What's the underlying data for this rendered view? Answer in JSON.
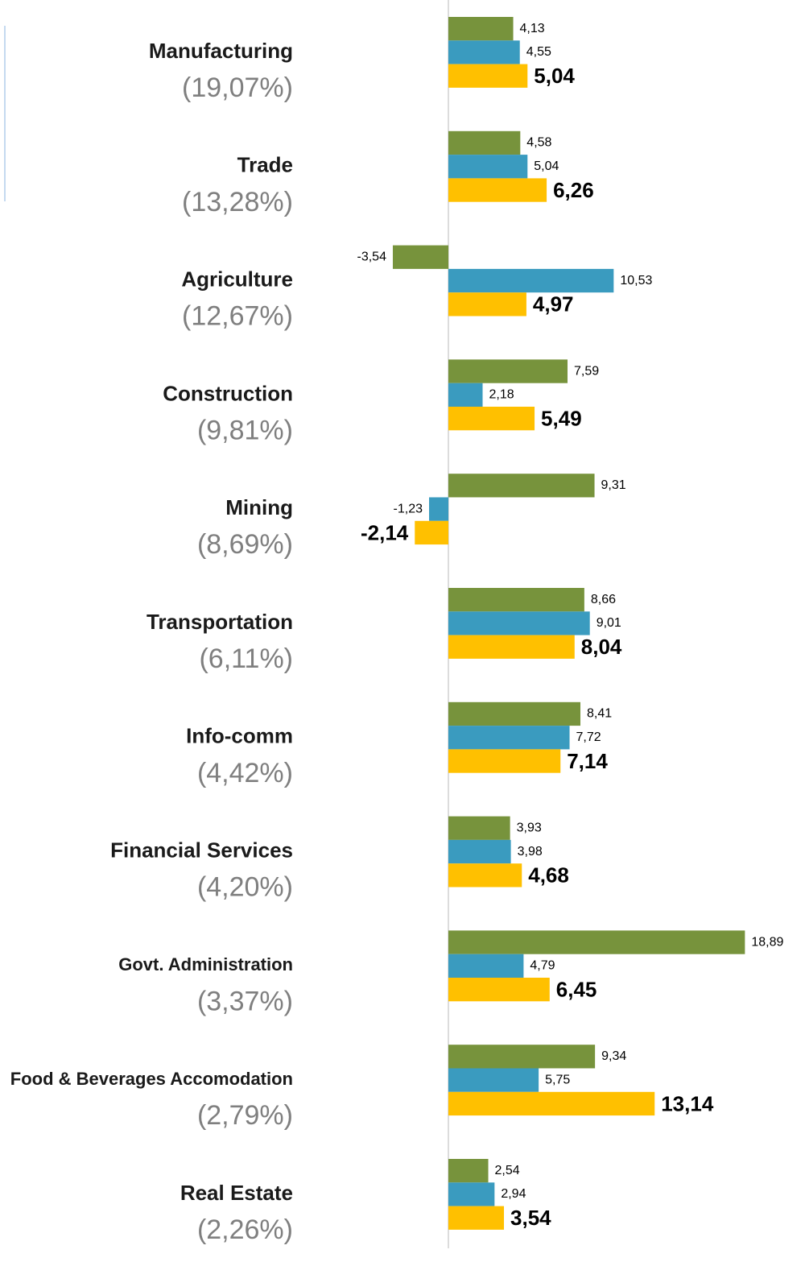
{
  "chart_data": {
    "type": "bar",
    "orientation": "horizontal",
    "categories": [
      "Manufacturing",
      "Trade",
      "Agriculture",
      "Construction",
      "Mining",
      "Transportation",
      "Info-comm",
      "Financial Services",
      "Govt. Administration",
      "Food & Beverages Accomodation",
      "Real Estate"
    ],
    "category_shares": [
      "(19,07%)",
      "(13,28%)",
      "(12,67%)",
      "(9,81%)",
      "(8,69%)",
      "(6,11%)",
      "(4,42%)",
      "(4,20%)",
      "(3,37%)",
      "(2,79%)",
      "(2,26%)"
    ],
    "xlim": [
      -10,
      22
    ],
    "series": [
      {
        "color": "#77933c",
        "values": [
          4.13,
          4.58,
          -3.54,
          7.59,
          9.31,
          8.66,
          8.41,
          3.93,
          18.89,
          9.34,
          2.54
        ],
        "value_labels": [
          "4,13",
          "4,58",
          "-3,54",
          "7,59",
          "9,31",
          "8,66",
          "8,41",
          "3,93",
          "18,89",
          "9,34",
          "2,54"
        ]
      },
      {
        "color": "#3a9bbf",
        "values": [
          4.55,
          5.04,
          10.53,
          2.18,
          -1.23,
          9.01,
          7.72,
          3.98,
          4.79,
          5.75,
          2.94
        ],
        "value_labels": [
          "4,55",
          "5,04",
          "10,53",
          "2,18",
          "-1,23",
          "9,01",
          "7,72",
          "3,98",
          "4,79",
          "5,75",
          "2,94"
        ]
      },
      {
        "color": "#ffc000",
        "values": [
          5.04,
          6.26,
          4.97,
          5.49,
          -2.14,
          8.04,
          7.14,
          4.68,
          6.45,
          13.14,
          3.54
        ],
        "value_labels": [
          "5,04",
          "6,26",
          "4,97",
          "5,49",
          "-2,14",
          "8,04",
          "7,14",
          "4,68",
          "6,45",
          "13,14",
          "3,54"
        ]
      }
    ]
  }
}
